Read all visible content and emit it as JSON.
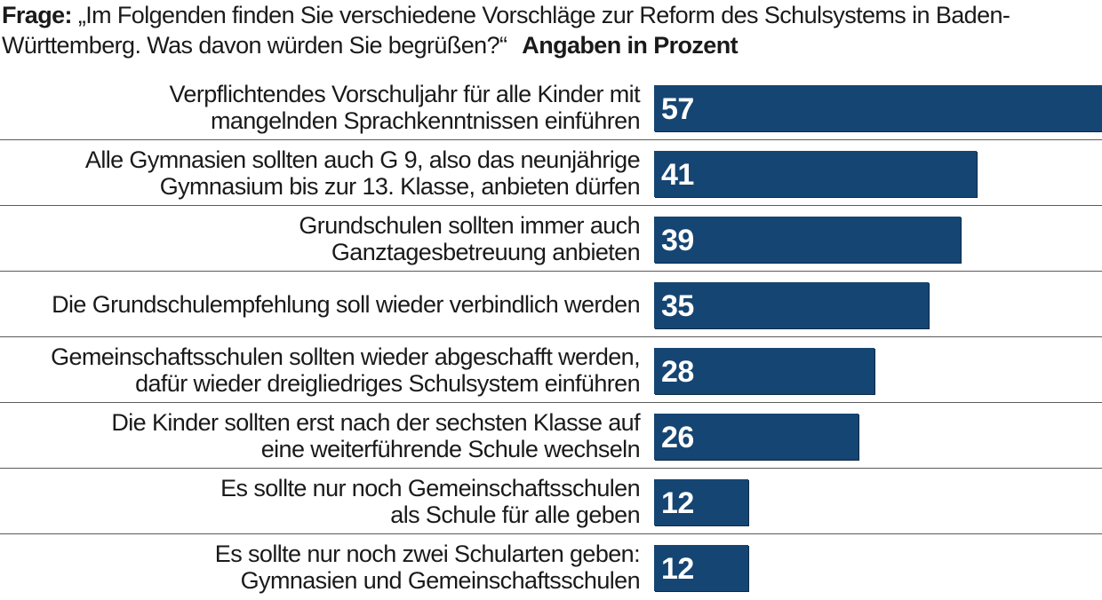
{
  "header": {
    "question_label": "Frage:",
    "question_text": "„Im Folgenden finden Sie verschiedene Vorschläge zur Reform des Schulsystems in Baden-Württemberg. Was davon würden Sie begrüßen?“",
    "unit_label": "Angaben in Prozent"
  },
  "chart_data": {
    "type": "bar",
    "orientation": "horizontal",
    "title": "„Im Folgenden finden Sie verschiedene Vorschläge zur Reform des Schulsystems in Baden-Württemberg. Was davon würden Sie begrüßen?“",
    "unit": "Angaben in Prozent",
    "categories": [
      "Verpflichtendes Vorschuljahr für alle Kinder mit\nmangelnden Sprachkenntnissen einführen",
      "Alle Gymnasien sollten auch G 9, also das neunjährige\nGymnasium bis zur 13. Klasse, anbieten dürfen",
      "Grundschulen sollten immer auch\nGanztagesbetreuung anbieten",
      "Die Grundschulempfehlung soll wieder verbindlich werden",
      "Gemeinschaftsschulen sollten wieder abgeschafft werden,\ndafür wieder dreigliedriges Schulsystem einführen",
      "Die Kinder sollten erst nach der sechsten Klasse auf\neine  weiterführende Schule wechseln",
      "Es sollte nur noch Gemeinschaftsschulen\nals Schule für alle geben",
      "Es sollte nur noch zwei Schularten geben:\nGymnasien und Gemeinschaftsschulen"
    ],
    "values": [
      57,
      41,
      39,
      35,
      28,
      26,
      12,
      12
    ],
    "xlim": [
      0,
      57
    ],
    "bar_color": "#154572",
    "value_label_color": "#ffffff",
    "grid": false,
    "legend": "none"
  }
}
